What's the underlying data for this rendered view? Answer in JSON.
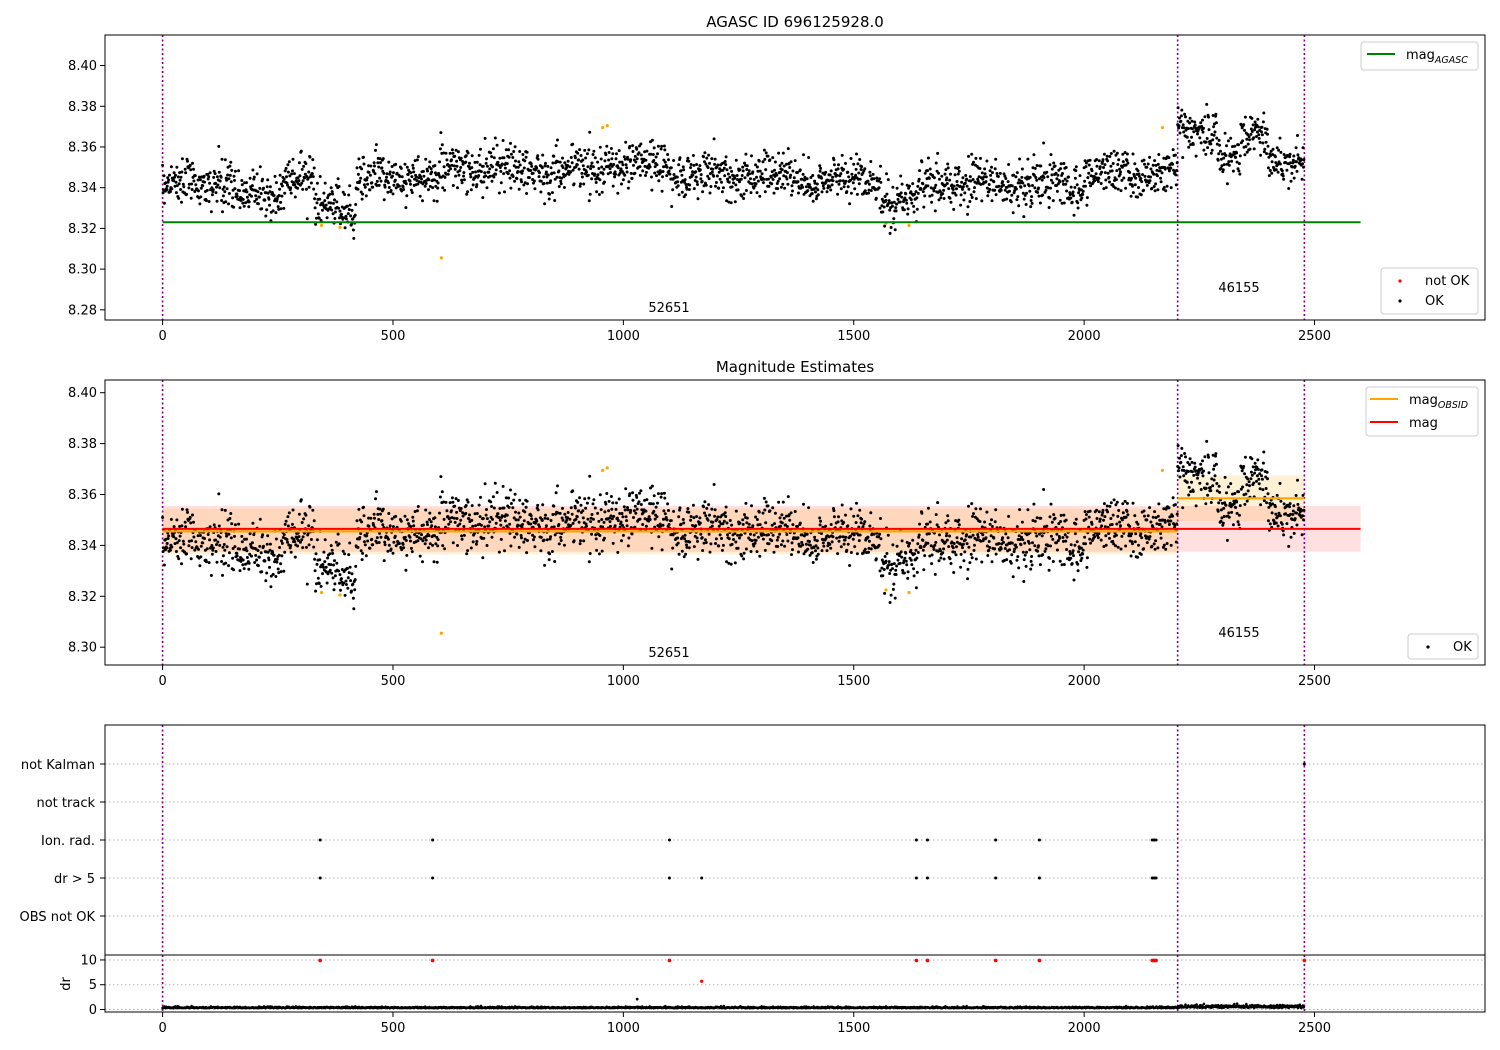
{
  "chart_data": [
    {
      "type": "scatter",
      "title": "AGASC ID 696125928.0",
      "xlabel": "",
      "ylabel": "",
      "xlim": [
        -125,
        2870
      ],
      "ylim": [
        8.275,
        8.415
      ],
      "x_ticks": [
        0,
        500,
        1000,
        1500,
        2000,
        2500
      ],
      "y_ticks": [
        8.28,
        8.3,
        8.32,
        8.34,
        8.36,
        8.38,
        8.4
      ],
      "obsid_boundaries": [
        0,
        2203,
        2478
      ],
      "obsid_labels": [
        {
          "text": "52651",
          "x": 1100,
          "y": 8.282
        },
        {
          "text": "46155",
          "x": 2340,
          "y": 8.291
        }
      ],
      "mag_agasc": {
        "value": 8.323,
        "x": [
          0,
          2600
        ],
        "color": "#008000"
      },
      "segments": [
        {
          "x0": 0,
          "x1": 150,
          "base": 8.342
        },
        {
          "x0": 150,
          "x1": 260,
          "base": 8.337
        },
        {
          "x0": 260,
          "x1": 330,
          "base": 8.345
        },
        {
          "x0": 330,
          "x1": 420,
          "base": 8.331
        },
        {
          "x0": 420,
          "x1": 600,
          "base": 8.345
        },
        {
          "x0": 600,
          "x1": 950,
          "base": 8.349
        },
        {
          "x0": 950,
          "x1": 1100,
          "base": 8.351
        },
        {
          "x0": 1100,
          "x1": 1200,
          "base": 8.347
        },
        {
          "x0": 1200,
          "x1": 1360,
          "base": 8.346
        },
        {
          "x0": 1360,
          "x1": 1560,
          "base": 8.344
        },
        {
          "x0": 1560,
          "x1": 1640,
          "base": 8.334
        },
        {
          "x0": 1640,
          "x1": 2000,
          "base": 8.342
        },
        {
          "x0": 2000,
          "x1": 2203,
          "base": 8.347
        },
        {
          "x0": 2203,
          "x1": 2290,
          "base": 8.369
        },
        {
          "x0": 2290,
          "x1": 2340,
          "base": 8.355
        },
        {
          "x0": 2340,
          "x1": 2400,
          "base": 8.366
        },
        {
          "x0": 2400,
          "x1": 2478,
          "base": 8.354
        }
      ],
      "noise_sigma": 0.0055,
      "not_ok_points": [
        [
          345,
          8.3215
        ],
        [
          385,
          8.3205
        ],
        [
          605,
          8.3055
        ],
        [
          955,
          8.3695
        ],
        [
          965,
          8.3705
        ],
        [
          1570,
          8.3225
        ],
        [
          1620,
          8.3215
        ],
        [
          2170,
          8.3695
        ]
      ],
      "legend": {
        "entries": [
          "mag",
          "AGASC",
          "not OK",
          "OK"
        ],
        "position": "upper-right / lower-right"
      },
      "colors": {
        "ok": "#000000",
        "not_ok": "#ffa500",
        "boundary": "#800080"
      }
    },
    {
      "type": "scatter",
      "title": "Magnitude Estimates",
      "xlabel": "",
      "ylabel": "",
      "xlim": [
        -125,
        2870
      ],
      "ylim": [
        8.293,
        8.405
      ],
      "x_ticks": [
        0,
        500,
        1000,
        1500,
        2000,
        2500
      ],
      "y_ticks": [
        8.3,
        8.32,
        8.34,
        8.36,
        8.38,
        8.4
      ],
      "mag": {
        "value": 8.3465,
        "band": [
          8.3375,
          8.3555
        ],
        "x": [
          0,
          2600
        ],
        "color": "#ff0000"
      },
      "mag_obsid": [
        {
          "x0": 0,
          "x1": 2203,
          "value": 8.3455,
          "band": [
            8.3365,
            8.3545
          ]
        },
        {
          "x0": 2203,
          "x1": 2478,
          "value": 8.3585,
          "band": [
            8.3495,
            8.3675
          ]
        }
      ],
      "obsid_labels": [
        {
          "text": "52651",
          "x": 1100,
          "y": 8.2955
        },
        {
          "text": "46155",
          "x": 2340,
          "y": 8.3035
        }
      ],
      "legend": {
        "entries": [
          "mag",
          "OBSID",
          "mag",
          "OK"
        ],
        "position": "upper-right / lower-right"
      },
      "colors": {
        "mag_obsid": "#ffa500"
      }
    },
    {
      "type": "scatter",
      "title": "",
      "categories": [
        "not Kalman",
        "not track",
        "Ion. rad.",
        "dr > 5",
        "OBS not OK"
      ],
      "xlim": [
        -125,
        2870
      ],
      "flag_points": {
        "not Kalman": [
          2478
        ],
        "not track": [],
        "Ion. rad.": [
          342,
          586,
          1100,
          1636,
          1660,
          1808,
          1903,
          2148,
          2152,
          2156
        ],
        "dr > 5": [
          342,
          586,
          1100,
          1170,
          1636,
          1660,
          1808,
          1903,
          2148,
          2152,
          2156
        ],
        "OBS not OK": []
      }
    },
    {
      "type": "scatter",
      "title": "",
      "ylabel": "dr",
      "xlim": [
        -125,
        2870
      ],
      "ylim": [
        -0.5,
        11
      ],
      "x_ticks": [
        0,
        500,
        1000,
        1500,
        2000,
        2500
      ],
      "y_ticks": [
        0,
        5,
        10
      ],
      "baseline": 0.3,
      "clipped_points_red": [
        [
          342,
          9.9
        ],
        [
          586,
          9.9
        ],
        [
          1100,
          9.9
        ],
        [
          1636,
          9.9
        ],
        [
          1660,
          9.9
        ],
        [
          1808,
          9.9
        ],
        [
          1903,
          9.9
        ],
        [
          2148,
          9.9
        ],
        [
          2152,
          9.9
        ],
        [
          2156,
          9.9
        ],
        [
          2478,
          9.9
        ]
      ],
      "other_red_points": [
        [
          1170,
          5.7
        ]
      ],
      "other_black_points": [
        [
          1030,
          2.1
        ]
      ]
    }
  ]
}
